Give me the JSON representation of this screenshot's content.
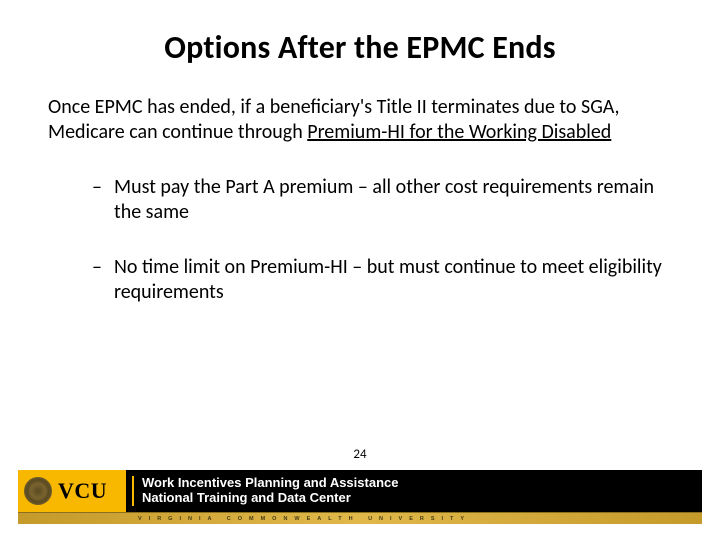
{
  "title": "Options After the EPMC Ends",
  "lead_plain": "Once EPMC has ended, if a beneficiary's Title II terminates due to SGA, Medicare can continue through ",
  "lead_underlined": "Premium-HI for the Working Disabled",
  "bullets": [
    "Must pay the Part A premium – all other cost requirements remain the same",
    "No time limit on Premium-HI – but must continue to meet eligibility requirements"
  ],
  "page_number": "24",
  "footer": {
    "logo_text": "VCU",
    "line1": "Work Incentives Planning and Assistance",
    "line2": "National Training and Data Center",
    "subtext": "VIRGINIA   COMMONWEALTH   UNIVERSITY",
    "accent_color": "#f8b800",
    "bar_color": "#000000"
  }
}
